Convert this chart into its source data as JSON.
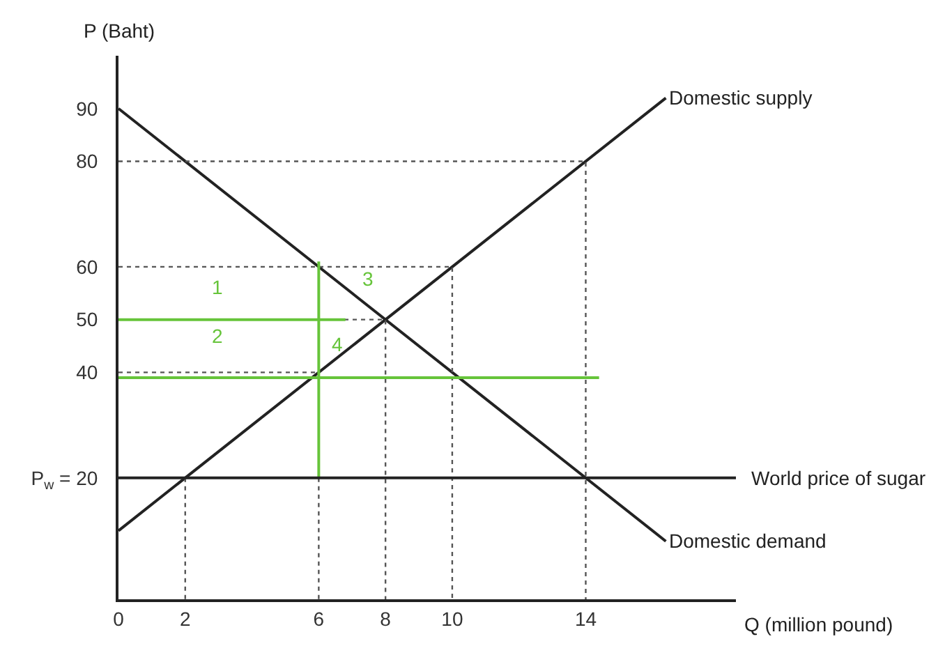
{
  "chart_data": {
    "type": "line",
    "xlabel": "Q (million pound)",
    "ylabel": "P (Baht)",
    "xlim": [
      0,
      18.5
    ],
    "ylim": [
      -3,
      100
    ],
    "xticks": [
      0,
      2,
      6,
      8,
      10,
      14
    ],
    "yticks": [
      {
        "value": 20,
        "label": "P$_{w}$ = 20"
      },
      40,
      50,
      60,
      80,
      90
    ],
    "grid": false,
    "series": [
      {
        "x": [
          0,
          16.4
        ],
        "values": [
          10,
          92
        ],
        "color": "#222222"
      },
      {
        "x": [
          0,
          16.4
        ],
        "values": [
          90,
          8
        ],
        "color": "#222222"
      },
      {
        "x": [
          0,
          14,
          14
        ],
        "values": [
          80,
          80,
          -3
        ],
        "color": "#555555",
        "line_style": "dotted"
      },
      {
        "x": [
          0,
          10,
          10
        ],
        "values": [
          60,
          60,
          -3
        ],
        "color": "#555555",
        "line_style": "dotted"
      },
      {
        "x": [
          6,
          6
        ],
        "values": [
          20,
          -3
        ],
        "color": "#555555",
        "line_style": "dotted"
      },
      {
        "x": [
          0,
          8,
          8
        ],
        "values": [
          50,
          50,
          -3
        ],
        "color": "#555555",
        "line_style": "dotted"
      },
      {
        "x": [
          0,
          6
        ],
        "values": [
          40,
          40
        ],
        "color": "#555555",
        "line_style": "dotted"
      },
      {
        "x": [
          2,
          2
        ],
        "values": [
          20,
          -3
        ],
        "color": "#555555",
        "line_style": "dotted"
      },
      {
        "x": [
          0,
          6.8
        ],
        "values": [
          50,
          50
        ],
        "color": "#66c43a"
      },
      {
        "x": [
          0,
          14.4
        ],
        "values": [
          39,
          39
        ],
        "color": "#66c43a"
      },
      {
        "x": [
          6,
          6
        ],
        "values": [
          61,
          20
        ],
        "color": "#66c43a"
      }
    ],
    "ref_lines": [
      {
        "axis": "y",
        "value": 20,
        "label": "World price of sugar",
        "color": "#222222"
      }
    ],
    "annotations": [
      {
        "text": "Domestic supply",
        "x": 16.4,
        "y": 92
      },
      {
        "text": "Domestic demand",
        "x": 16.4,
        "y": 8
      },
      "1",
      "2",
      "3",
      "4"
    ]
  }
}
